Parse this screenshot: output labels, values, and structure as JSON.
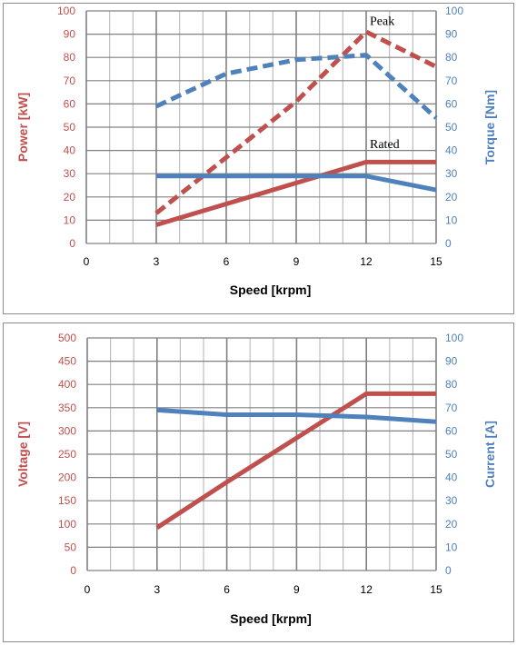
{
  "colors": {
    "red": "#c0504d",
    "blue": "#4f81bd",
    "grid": "#bfbfbf",
    "major_grid": "#808080"
  },
  "chart_data": [
    {
      "type": "line",
      "xlabel": "Speed [krpm]",
      "ylabel_left": "Power [kW]",
      "ylabel_right": "Torque [Nm]",
      "xlim": [
        0,
        15
      ],
      "ylim_left": [
        0,
        100
      ],
      "ylim_right": [
        0,
        100
      ],
      "x_ticks": [
        "0",
        "3",
        "6",
        "9",
        "12",
        "15"
      ],
      "y_ticks_left": [
        "0",
        "10",
        "20",
        "30",
        "40",
        "50",
        "60",
        "70",
        "80",
        "90",
        "100"
      ],
      "y_ticks_right": [
        "0",
        "10",
        "20",
        "30",
        "40",
        "50",
        "60",
        "70",
        "80",
        "90",
        "100"
      ],
      "grid": true,
      "annotations": [
        {
          "text": "Peak",
          "x": 12,
          "y": 94
        },
        {
          "text": "Rated",
          "x": 12,
          "y": 41
        }
      ],
      "series": [
        {
          "axis": "left",
          "color": "#c0504d",
          "style": "dashed",
          "x": [
            3,
            6,
            9,
            12,
            15
          ],
          "y": [
            13,
            37,
            61,
            91,
            76
          ]
        },
        {
          "axis": "left",
          "color": "#c0504d",
          "style": "solid",
          "x": [
            3,
            6,
            9,
            12,
            15
          ],
          "y": [
            8,
            17,
            26,
            35,
            35
          ]
        },
        {
          "axis": "right",
          "color": "#4f81bd",
          "style": "dashed",
          "x": [
            3,
            6,
            9,
            10.5,
            12,
            15
          ],
          "y": [
            59,
            73,
            79,
            80,
            81,
            54
          ]
        },
        {
          "axis": "right",
          "color": "#4f81bd",
          "style": "solid",
          "x": [
            3,
            6,
            9,
            12,
            15
          ],
          "y": [
            29,
            29,
            29,
            29,
            23
          ]
        }
      ]
    },
    {
      "type": "line",
      "xlabel": "Speed [krpm]",
      "ylabel_left": "Voltage [V]",
      "ylabel_right": "Current [A]",
      "xlim": [
        0,
        15
      ],
      "ylim_left": [
        0,
        500
      ],
      "ylim_right": [
        0,
        100
      ],
      "x_ticks": [
        "0",
        "3",
        "6",
        "9",
        "12",
        "15"
      ],
      "y_ticks_left": [
        "0",
        "50",
        "100",
        "150",
        "200",
        "250",
        "300",
        "350",
        "400",
        "450",
        "500"
      ],
      "y_ticks_right": [
        "0",
        "10",
        "20",
        "30",
        "40",
        "50",
        "60",
        "70",
        "80",
        "90",
        "100"
      ],
      "grid": true,
      "annotations": [],
      "series": [
        {
          "axis": "left",
          "color": "#c0504d",
          "style": "solid",
          "x": [
            3,
            6,
            9,
            12,
            15
          ],
          "y": [
            92,
            190,
            285,
            380,
            380
          ]
        },
        {
          "axis": "right",
          "color": "#4f81bd",
          "style": "solid",
          "x": [
            3,
            6,
            9,
            12,
            15
          ],
          "y": [
            69,
            67,
            67,
            66,
            64
          ]
        }
      ]
    }
  ]
}
